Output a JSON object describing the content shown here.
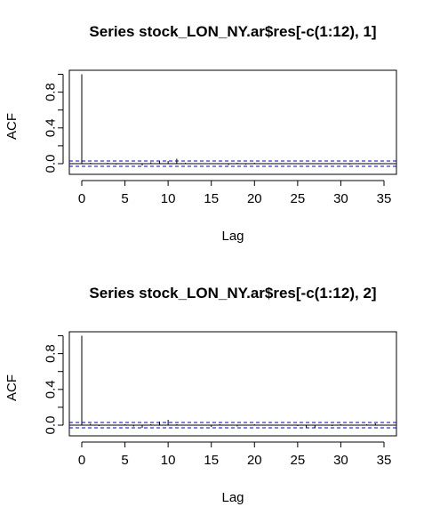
{
  "chart_data": [
    {
      "type": "bar",
      "title": "Series  stock_LON_NY.ar$res[-c(1:12), 1]",
      "xlabel": "Lag",
      "ylabel": "ACF",
      "xlim": [
        0,
        35
      ],
      "ylim": [
        -0.1,
        1.05
      ],
      "xticks": [
        "0",
        "5",
        "10",
        "15",
        "20",
        "25",
        "30",
        "35"
      ],
      "yticks": [
        "0.0",
        "0.4",
        "0.8"
      ],
      "ci": 0.03,
      "colors": {
        "bars": "#000000",
        "ci": "#0000cc",
        "zero": "#000000"
      },
      "lags": [
        0,
        1,
        2,
        3,
        4,
        5,
        6,
        7,
        8,
        9,
        10,
        11,
        12,
        13,
        14,
        15,
        16,
        17,
        18,
        19,
        20,
        21,
        22,
        23,
        24,
        25,
        26,
        27,
        28,
        29,
        30,
        31,
        32,
        33,
        34,
        35
      ],
      "values": [
        1.0,
        0.01,
        -0.005,
        0.01,
        -0.01,
        0.005,
        -0.005,
        -0.02,
        0.015,
        0.025,
        0.03,
        0.055,
        0.01,
        -0.005,
        0.005,
        -0.005,
        0.005,
        -0.015,
        0.01,
        -0.01,
        0.01,
        0.005,
        0.0,
        0.005,
        -0.005,
        0.005,
        -0.005,
        0.0,
        0.005,
        -0.005,
        0.005,
        -0.01,
        0.005,
        0.0,
        -0.005,
        0.005
      ]
    },
    {
      "type": "bar",
      "title": "Series  stock_LON_NY.ar$res[-c(1:12), 2]",
      "xlabel": "Lag",
      "ylabel": "ACF",
      "xlim": [
        0,
        35
      ],
      "ylim": [
        -0.1,
        1.05
      ],
      "xticks": [
        "0",
        "5",
        "10",
        "15",
        "20",
        "25",
        "30",
        "35"
      ],
      "yticks": [
        "0.0",
        "0.4",
        "0.8"
      ],
      "ci": 0.03,
      "colors": {
        "bars": "#000000",
        "ci": "#0000cc",
        "zero": "#000000"
      },
      "lags": [
        0,
        1,
        2,
        3,
        4,
        5,
        6,
        7,
        8,
        9,
        10,
        11,
        12,
        13,
        14,
        15,
        16,
        17,
        18,
        19,
        20,
        21,
        22,
        23,
        24,
        25,
        26,
        27,
        28,
        29,
        30,
        31,
        32,
        33,
        34,
        35
      ],
      "values": [
        1.0,
        0.015,
        -0.01,
        0.005,
        -0.005,
        0.01,
        -0.015,
        -0.03,
        0.01,
        0.04,
        0.06,
        0.01,
        -0.005,
        0.005,
        0.0,
        -0.02,
        0.01,
        -0.005,
        -0.015,
        0.005,
        0.01,
        0.0,
        -0.005,
        0.005,
        0.0,
        -0.01,
        -0.025,
        -0.035,
        0.005,
        -0.01,
        0.01,
        0.005,
        0.005,
        0.01,
        0.02,
        0.005
      ]
    }
  ]
}
